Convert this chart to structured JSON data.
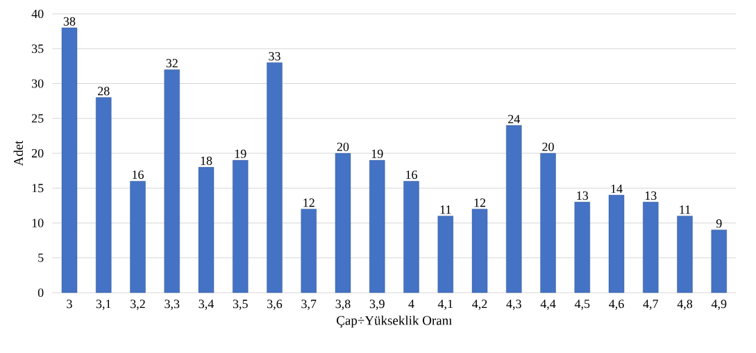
{
  "chart_data": {
    "type": "bar",
    "xlabel": "Çap÷Yükseklik Oranı",
    "ylabel": "Adet",
    "categories": [
      "3",
      "3,1",
      "3,2",
      "3,3",
      "3,4",
      "3,5",
      "3,6",
      "3,7",
      "3,8",
      "3,9",
      "4",
      "4,1",
      "4,2",
      "4,3",
      "4,4",
      "4,5",
      "4,6",
      "4,7",
      "4,8",
      "4,9"
    ],
    "values": [
      38,
      28,
      16,
      32,
      18,
      19,
      33,
      12,
      20,
      19,
      16,
      11,
      12,
      24,
      20,
      13,
      14,
      13,
      11,
      9
    ],
    "color": "#4472c4",
    "ylim": [
      0,
      40
    ],
    "yticks": [
      0,
      5,
      10,
      15,
      20,
      25,
      30,
      35,
      40
    ],
    "grid": "y",
    "data_labels": true
  }
}
